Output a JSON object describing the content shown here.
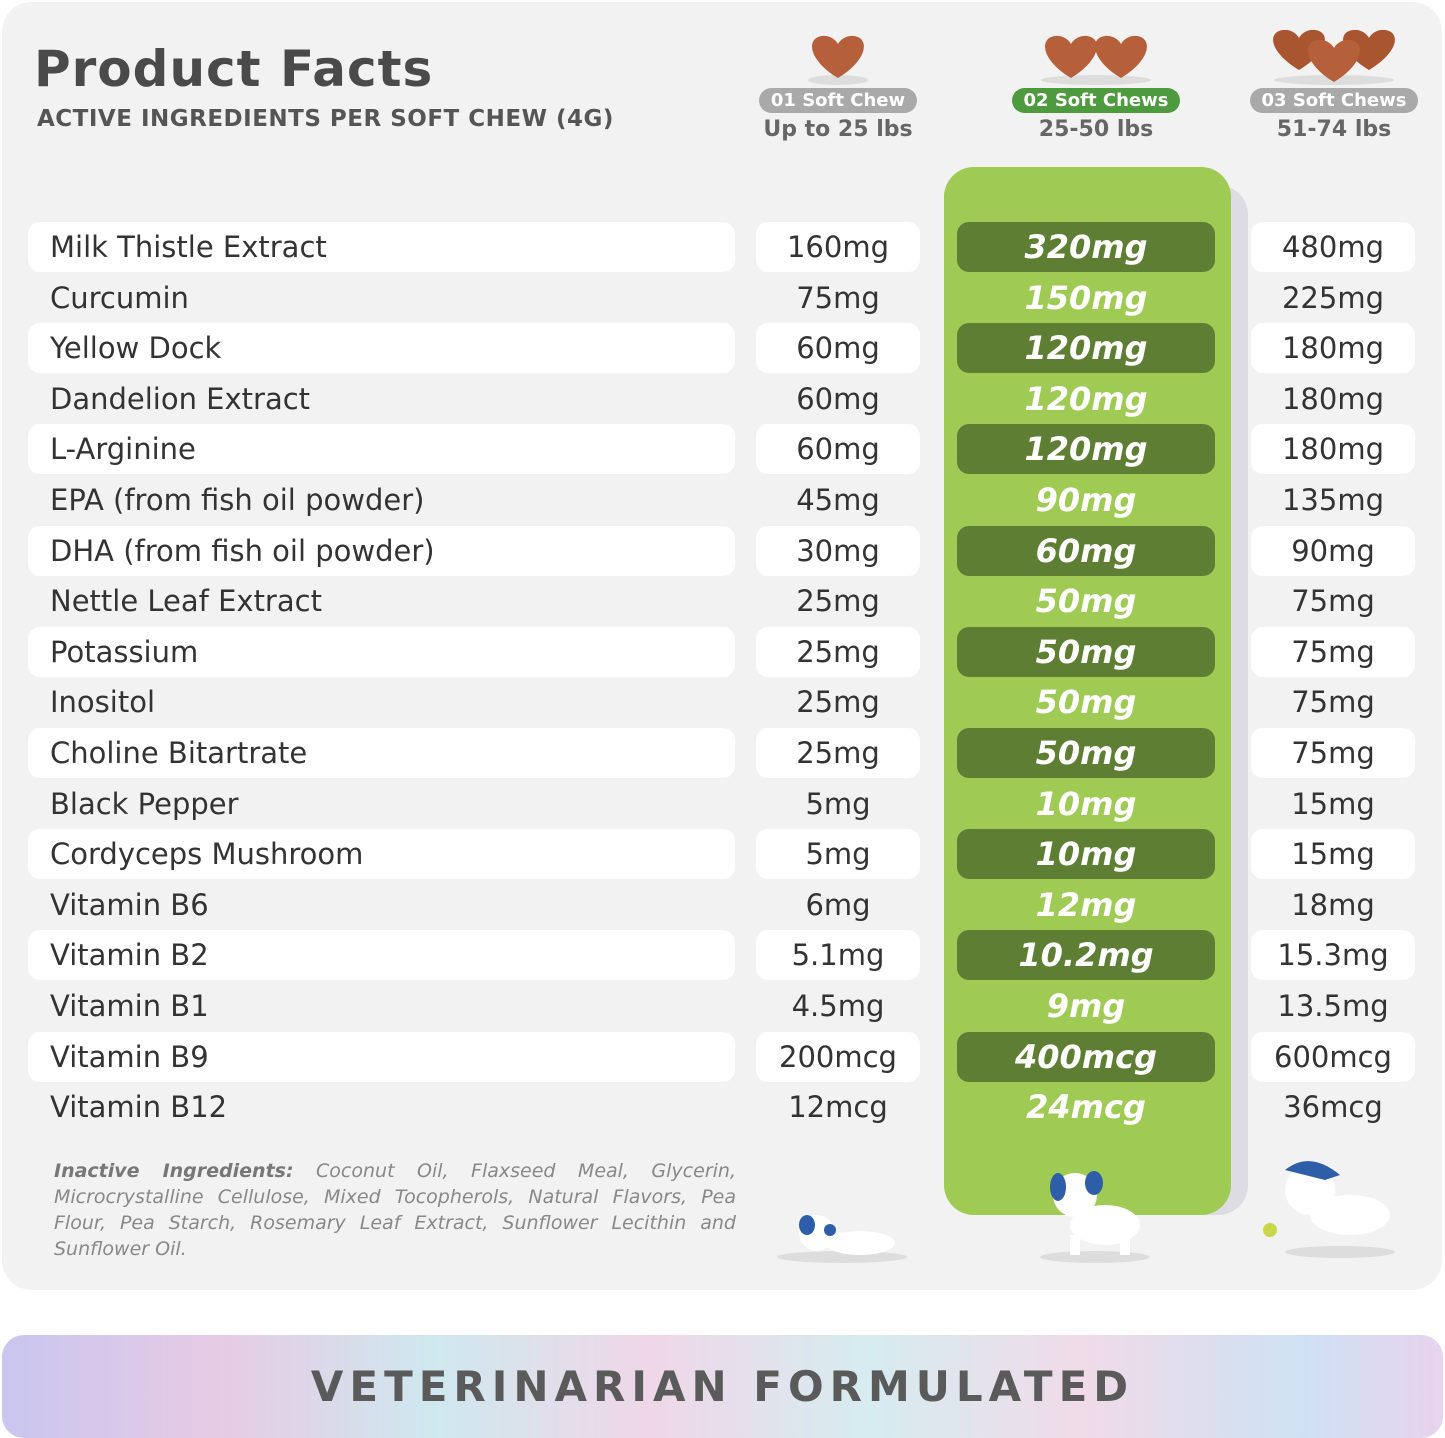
{
  "header": {
    "title": "Product Facts",
    "subtitle": "ACTIVE INGREDIENTS PER SOFT CHEW (4G)"
  },
  "columns": [
    {
      "badge": "01 Soft Chew",
      "range": "Up to 25 lbs",
      "chews": 1
    },
    {
      "badge": "02 Soft Chews",
      "range": "25-50 lbs",
      "chews": 2,
      "highlighted": true
    },
    {
      "badge": "03 Soft Chews",
      "range": "51-74 lbs",
      "chews": 3
    }
  ],
  "rows": [
    {
      "name": "Milk Thistle Extract",
      "v": [
        "160mg",
        "320mg",
        "480mg"
      ]
    },
    {
      "name": "Curcumin",
      "v": [
        "75mg",
        "150mg",
        "225mg"
      ]
    },
    {
      "name": "Yellow Dock",
      "v": [
        "60mg",
        "120mg",
        "180mg"
      ]
    },
    {
      "name": "Dandelion Extract",
      "v": [
        "60mg",
        "120mg",
        "180mg"
      ]
    },
    {
      "name": "L-Arginine",
      "v": [
        "60mg",
        "120mg",
        "180mg"
      ]
    },
    {
      "name": "EPA (from fish oil powder)",
      "v": [
        "45mg",
        "90mg",
        "135mg"
      ]
    },
    {
      "name": "DHA (from fish oil powder)",
      "v": [
        "30mg",
        "60mg",
        "90mg"
      ]
    },
    {
      "name": "Nettle Leaf Extract",
      "v": [
        "25mg",
        "50mg",
        "75mg"
      ]
    },
    {
      "name": "Potassium",
      "v": [
        "25mg",
        "50mg",
        "75mg"
      ]
    },
    {
      "name": "Inositol",
      "v": [
        "25mg",
        "50mg",
        "75mg"
      ]
    },
    {
      "name": "Choline Bitartrate",
      "v": [
        "25mg",
        "50mg",
        "75mg"
      ]
    },
    {
      "name": "Black Pepper",
      "v": [
        "5mg",
        "10mg",
        "15mg"
      ]
    },
    {
      "name": "Cordyceps Mushroom",
      "v": [
        "5mg",
        "10mg",
        "15mg"
      ]
    },
    {
      "name": "Vitamin B6",
      "v": [
        "6mg",
        "12mg",
        "18mg"
      ]
    },
    {
      "name": "Vitamin B2",
      "v": [
        "5.1mg",
        "10.2mg",
        "15.3mg"
      ]
    },
    {
      "name": "Vitamin B1",
      "v": [
        "4.5mg",
        "9mg",
        "13.5mg"
      ]
    },
    {
      "name": "Vitamin B9",
      "v": [
        "200mcg",
        "400mcg",
        "600mcg"
      ]
    },
    {
      "name": "Vitamin B12",
      "v": [
        "12mcg",
        "24mcg",
        "36mcg"
      ]
    }
  ],
  "inactive": {
    "label": "Inactive Ingredients:",
    "text": " Coconut Oil, Flaxseed Meal, Glycerin, Microcrystalline Cellulose, Mixed Tocopherols, Natural Flavors, Pea Flour, Pea Starch, Rosemary Leaf Extract, Sunflower Lecithin and Sunflower Oil."
  },
  "banner": "VETERINARIAN FORMULATED",
  "colors": {
    "highlight_green": "#9fcb55",
    "dark_green": "#5e7f33",
    "badge_green": "#4e9a3e",
    "badge_gray": "#a9a9a9",
    "chew_brown": "#b5603a"
  }
}
